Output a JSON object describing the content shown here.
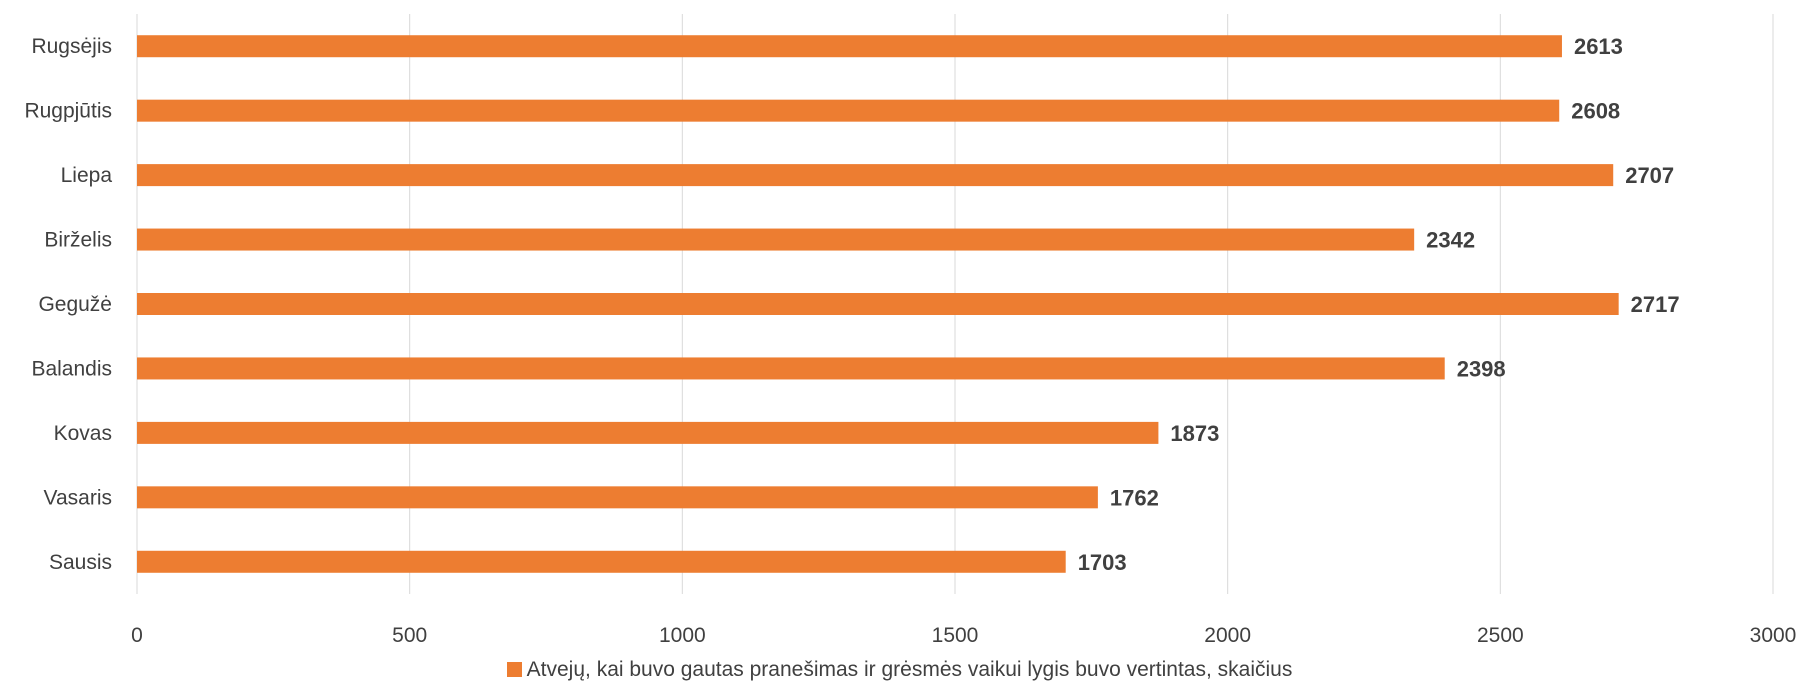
{
  "chart_data": {
    "type": "bar",
    "orientation": "horizontal",
    "categories": [
      "Sausis",
      "Vasaris",
      "Kovas",
      "Balandis",
      "Gegužė",
      "Birželis",
      "Liepa",
      "Rugpjūtis",
      "Rugsėjis"
    ],
    "series": [
      {
        "name": "Atvejų, kai buvo gautas pranešimas ir grėsmės vaikui lygis buvo vertintas, skaičius",
        "values": [
          1703,
          1762,
          1873,
          2398,
          2717,
          2342,
          2707,
          2608,
          2613
        ],
        "color": "#ED7D31"
      }
    ],
    "xlim": [
      0,
      3000
    ],
    "xticks": [
      0,
      500,
      1000,
      1500,
      2000,
      2500,
      3000
    ],
    "grid": true,
    "legend_position": "bottom",
    "data_labels": true,
    "gridline_color": "#D9D9D9"
  }
}
